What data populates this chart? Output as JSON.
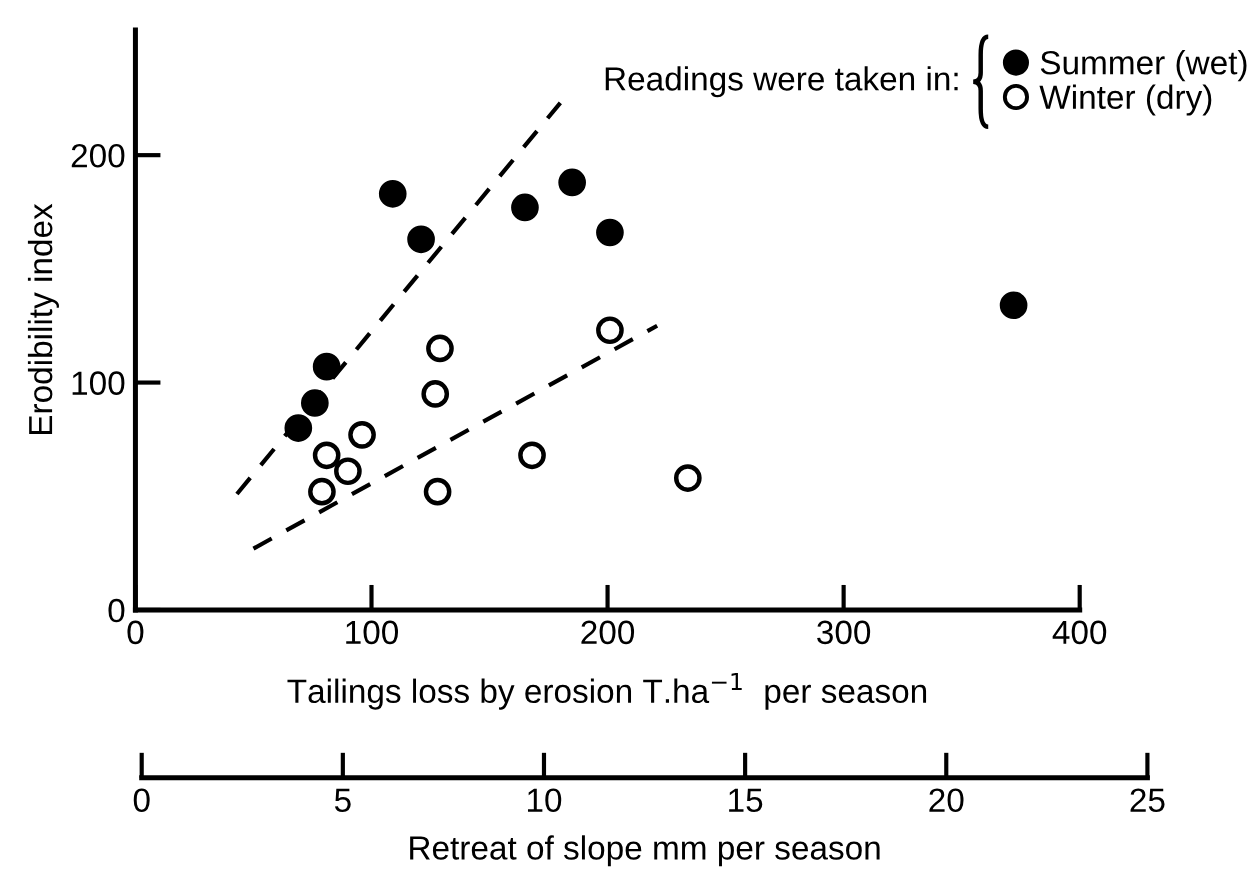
{
  "chart_data": {
    "type": "scatter",
    "xlabel": "Tailings loss by erosion T.ha$^{−1}$  per season",
    "ylabel": "Erodibility index",
    "x2label": "Retreat of slope mm per season",
    "legend_title": "Readings were taken in:",
    "xlim": [
      0,
      400
    ],
    "xticks": [
      0,
      100,
      200,
      300,
      400
    ],
    "ylim": [
      0,
      255
    ],
    "yticks": [
      0,
      100,
      200
    ],
    "x2lim": [
      0,
      25
    ],
    "x2ticks": [
      0,
      5,
      10,
      15,
      20,
      25
    ],
    "grid": false,
    "legend": "top right",
    "marker": "circle",
    "series": [
      {
        "name": "Summer (wet)",
        "color": "#000000",
        "x": [
          109,
          121,
          165,
          185,
          201,
          81,
          76,
          69,
          372
        ],
        "values": [
          183,
          163,
          177,
          188,
          166,
          107,
          91,
          80,
          134
        ]
      },
      {
        "name": "Winter (dry)",
        "color": "#ffffff",
        "x": [
          201,
          129,
          127,
          96,
          81,
          90,
          79,
          128,
          168,
          234
        ],
        "values": [
          123,
          115,
          95,
          77,
          68,
          61,
          52,
          52,
          68,
          58
        ]
      },
      {
        "type": "line",
        "marker": "none",
        "line_style": "dashed",
        "color": "#000000",
        "x": [
          43,
          180
        ],
        "values": [
          51,
          223
        ]
      },
      {
        "type": "line",
        "marker": "none",
        "line_style": "dashed",
        "color": "#000000",
        "x": [
          50,
          221
        ],
        "values": [
          27,
          125
        ]
      }
    ]
  }
}
